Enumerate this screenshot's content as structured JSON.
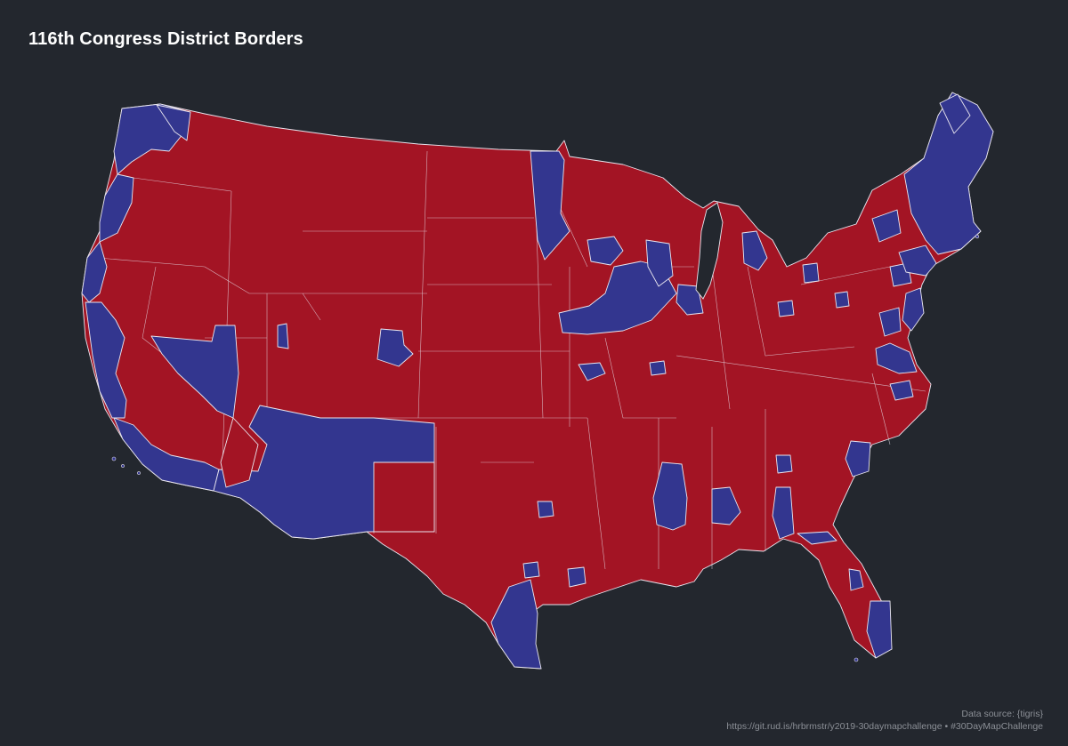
{
  "title": "116th Congress District Borders",
  "caption": {
    "source": "Data source: {tigris}",
    "link": "https://git.rud.is/hrbrmstr/y2019-30daymapchallenge • #30DayMapChallenge"
  },
  "colors": {
    "background": "#23272e",
    "republican": "#a31424",
    "democrat": "#33368f",
    "border": "#e9e6ef",
    "title": "#ffffff",
    "caption": "#8b8f96"
  }
}
